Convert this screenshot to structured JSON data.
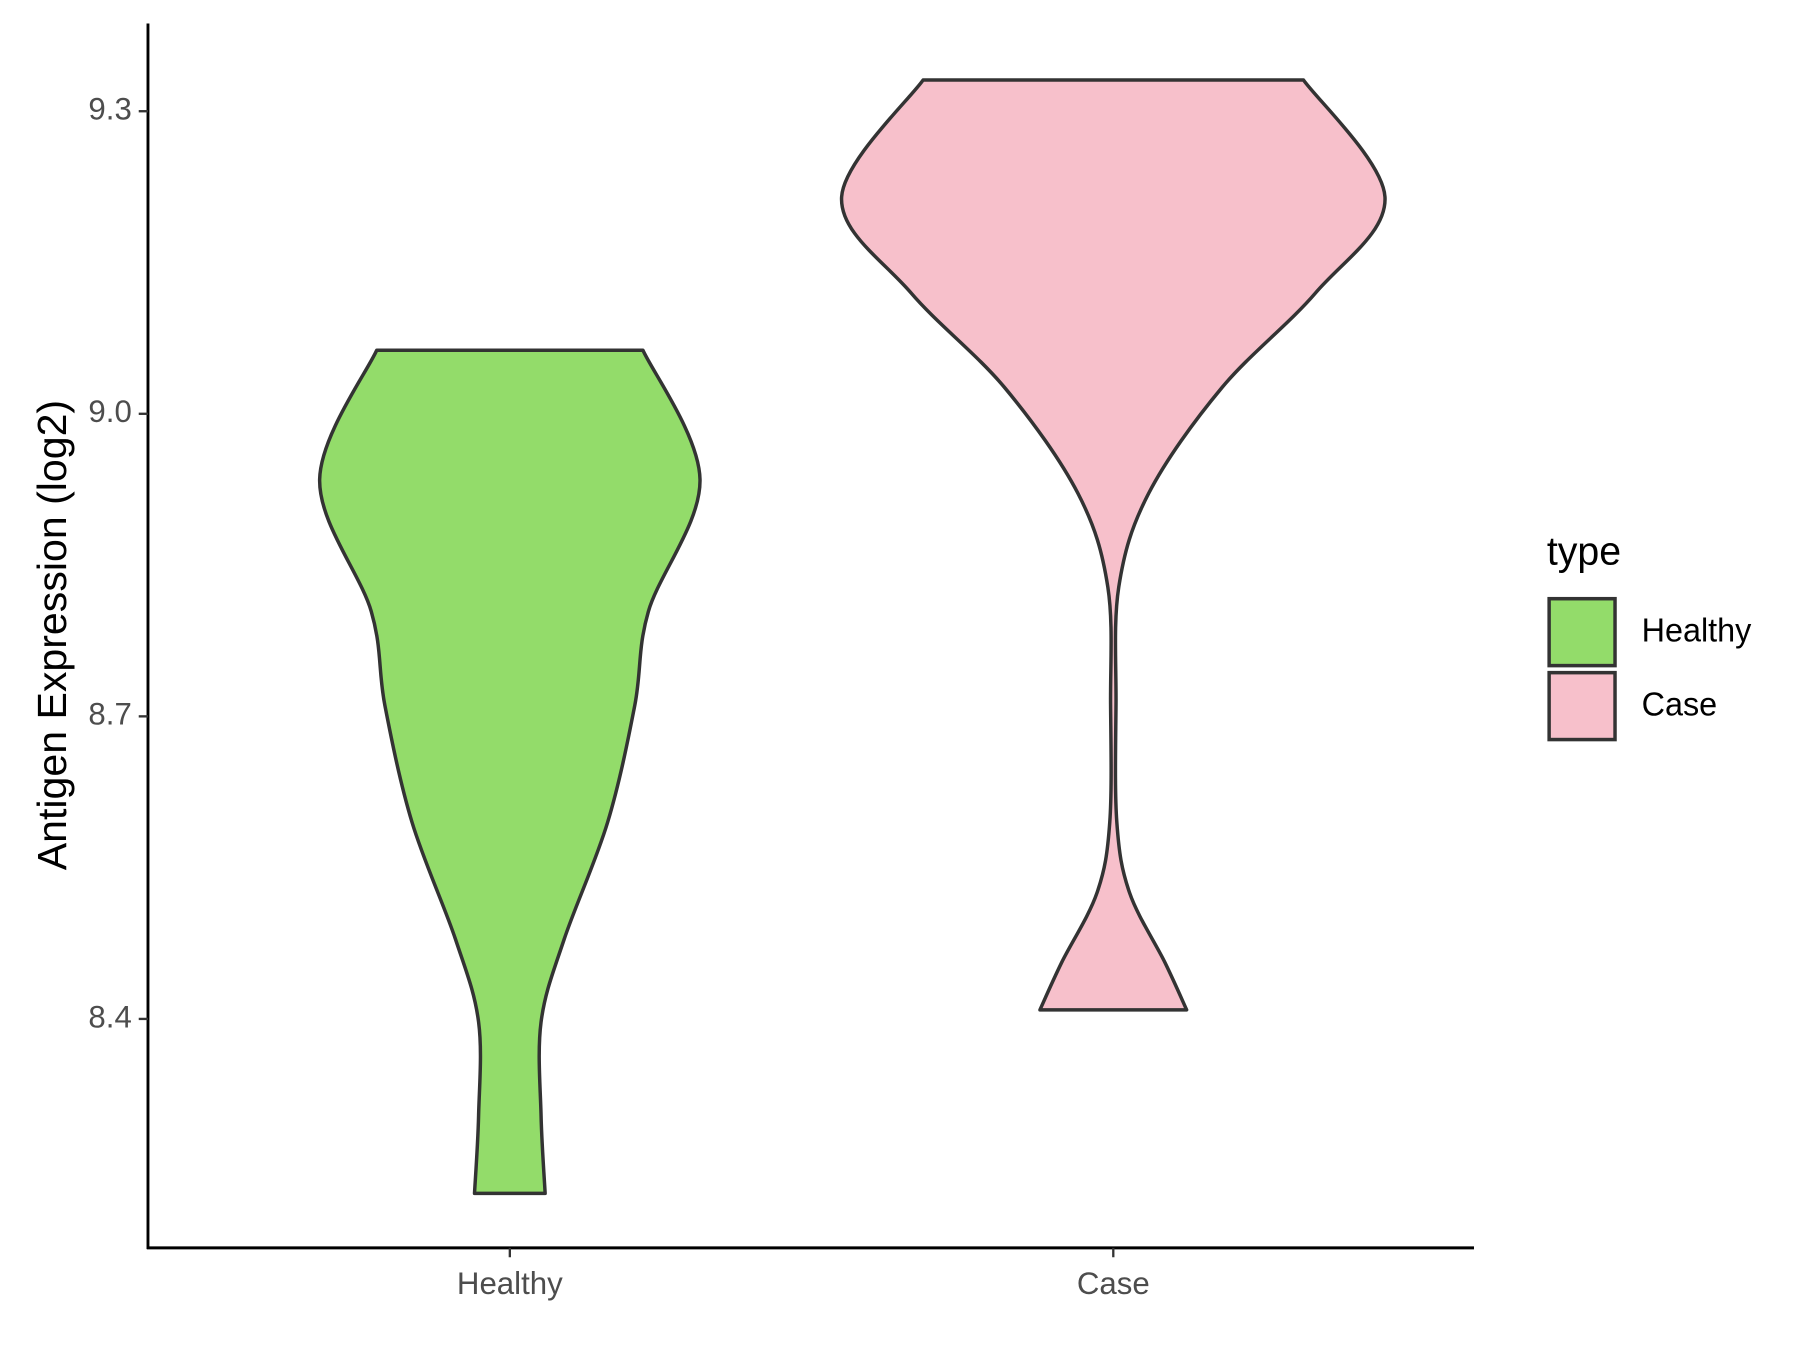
{
  "chart_data": {
    "type": "violin",
    "ylabel": "Antigen Expression (log2)",
    "categories": [
      "Healthy",
      "Case"
    ],
    "legend_title": "type",
    "ylim": [
      8.173,
      9.387
    ],
    "yticks": [
      8.4,
      8.7,
      {
        "value": 9,
        "label": "9.0"
      },
      9.3
    ],
    "series": [
      {
        "name": "Healthy",
        "color": "#93dc6a",
        "y": [
          9.063,
          8.935,
          8.804,
          8.711,
          8.595,
          8.479,
          8.397,
          8.304,
          8.227
        ],
        "widths": [
          0.49,
          0.7,
          0.51,
          0.46,
          0.36,
          0.2,
          0.115,
          0.115,
          0.13
        ]
      },
      {
        "name": "Case",
        "color": "#f7c0cb",
        "y": [
          9.331,
          9.215,
          9.12,
          9.026,
          8.921,
          8.828,
          8.712,
          8.595,
          8.525,
          8.456,
          8.409
        ],
        "widths": [
          0.7,
          1,
          0.745,
          0.4,
          0.13,
          0.02,
          0.01,
          0.013,
          0.06,
          0.19,
          0.27
        ]
      }
    ]
  }
}
